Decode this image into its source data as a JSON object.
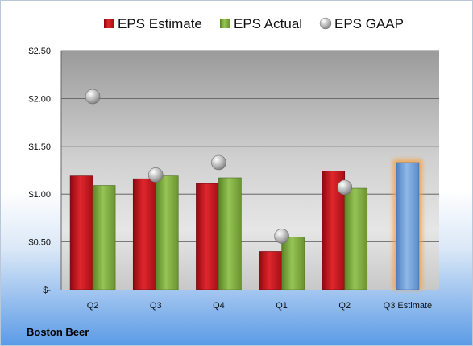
{
  "chart_data": {
    "type": "bar",
    "categories": [
      "Q2",
      "Q3",
      "Q4",
      "Q1",
      "Q2",
      "Q3 Estimate"
    ],
    "series": [
      {
        "name": "EPS Estimate",
        "color": "#c8141c",
        "values": [
          1.19,
          1.16,
          1.11,
          0.4,
          1.24,
          null
        ]
      },
      {
        "name": "EPS Actual",
        "color": "#7eab3c",
        "values": [
          1.09,
          1.19,
          1.17,
          0.55,
          1.06,
          null
        ]
      },
      {
        "name": "EPS GAAP",
        "color": "#a6a6a6",
        "marker": "circle",
        "values": [
          2.02,
          1.2,
          1.33,
          0.56,
          1.07,
          null
        ]
      }
    ],
    "estimate_bar": {
      "category": "Q3 Estimate",
      "value": 1.33,
      "color": "#6fa0d8",
      "glow_color": "#f5a142"
    },
    "ylim": [
      0,
      2.5
    ],
    "yticks": [
      0,
      0.5,
      1.0,
      1.5,
      2.0,
      2.5
    ],
    "ytick_labels": [
      "$-",
      "$0.50",
      "$1.00",
      "$1.50",
      "$2.00",
      "$2.50"
    ],
    "grid": true,
    "legend_position": "top",
    "company": "Boston Beer"
  }
}
